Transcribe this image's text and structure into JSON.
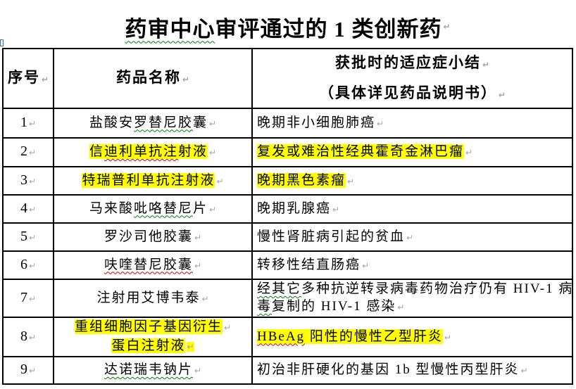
{
  "colors": {
    "highlight": "#ffff00",
    "squiggle_green": "#008000",
    "squiggle_red": "#cc0000",
    "border": "#000000",
    "text": "#000000"
  },
  "marks": {
    "paragraph": "↵"
  },
  "title": {
    "segments": [
      {
        "t": "药审中心",
        "sq": "green"
      },
      {
        "t": "审评通过的 1 类创新药"
      }
    ]
  },
  "table": {
    "header": {
      "num": "序号",
      "name": "药品名称",
      "indication_line1": "获批时的适应症小结",
      "indication_line2": "（具体详见药品说明书）"
    },
    "rows": [
      {
        "num": "1",
        "name": [
          {
            "t": "盐酸安"
          },
          {
            "t": "罗替尼胶",
            "sq": "green"
          },
          {
            "t": "囊"
          }
        ],
        "indication": [
          {
            "t": "晚期非小细胞肺癌"
          }
        ]
      },
      {
        "num": "2",
        "name": [
          {
            "t": "信",
            "hl": true
          },
          {
            "t": "迪利单抗注",
            "hl": true,
            "sq": "red"
          },
          {
            "t": "射液",
            "hl": true
          }
        ],
        "indication": [
          {
            "t": "复发或难治性经典霍奇金淋巴瘤",
            "hl": true
          }
        ]
      },
      {
        "num": "3",
        "name": [
          {
            "t": "特瑞普利单抗注射液",
            "hl": true
          }
        ],
        "indication": [
          {
            "t": "晚期黑色素瘤",
            "hl": true
          }
        ]
      },
      {
        "num": "4",
        "name": [
          {
            "t": "马来酸"
          },
          {
            "t": "吡咯替尼",
            "sq": "green"
          },
          {
            "t": "片"
          }
        ],
        "indication": [
          {
            "t": "晚期乳腺癌"
          }
        ]
      },
      {
        "num": "5",
        "name": [
          {
            "t": "罗沙司他胶囊"
          }
        ],
        "indication": [
          {
            "t": "慢性肾脏病引起的贫血"
          }
        ]
      },
      {
        "num": "6",
        "name": [
          {
            "t": "呋喹替尼胶囊",
            "sq": "red"
          }
        ],
        "indication": [
          {
            "t": "转移性结直肠癌"
          }
        ]
      },
      {
        "num": "7",
        "name": [
          {
            "t": "注射用艾博韦泰"
          }
        ],
        "indication": [
          {
            "t": "经其它",
            "sq": "green"
          },
          {
            "t": "多种抗逆转录病毒药物治疗仍有 HIV-1 病\n"
          },
          {
            "t": "毒",
            "sq": "green"
          },
          {
            "t": "复制的 HIV-1 感染"
          }
        ]
      },
      {
        "num": "8",
        "name": [
          {
            "t": "重组细胞因子基因衍生",
            "hl": true
          },
          {
            "mark": true
          },
          {
            "t": "\n"
          },
          {
            "t": "蛋白注射液",
            "hl": true
          },
          {
            "mark": true,
            "hl": true
          }
        ],
        "indication": [
          {
            "t": "HBeAg",
            "hl": true,
            "sq": "red"
          },
          {
            "t": " 阳性的慢性乙型肝炎",
            "hl": true
          }
        ]
      },
      {
        "num": "9",
        "name": [
          {
            "t": "达诺瑞韦钠片",
            "sq": "green"
          }
        ],
        "indication": [
          {
            "t": "初治非肝硬化的基因 1b 型慢性丙型肝炎"
          }
        ]
      }
    ]
  }
}
